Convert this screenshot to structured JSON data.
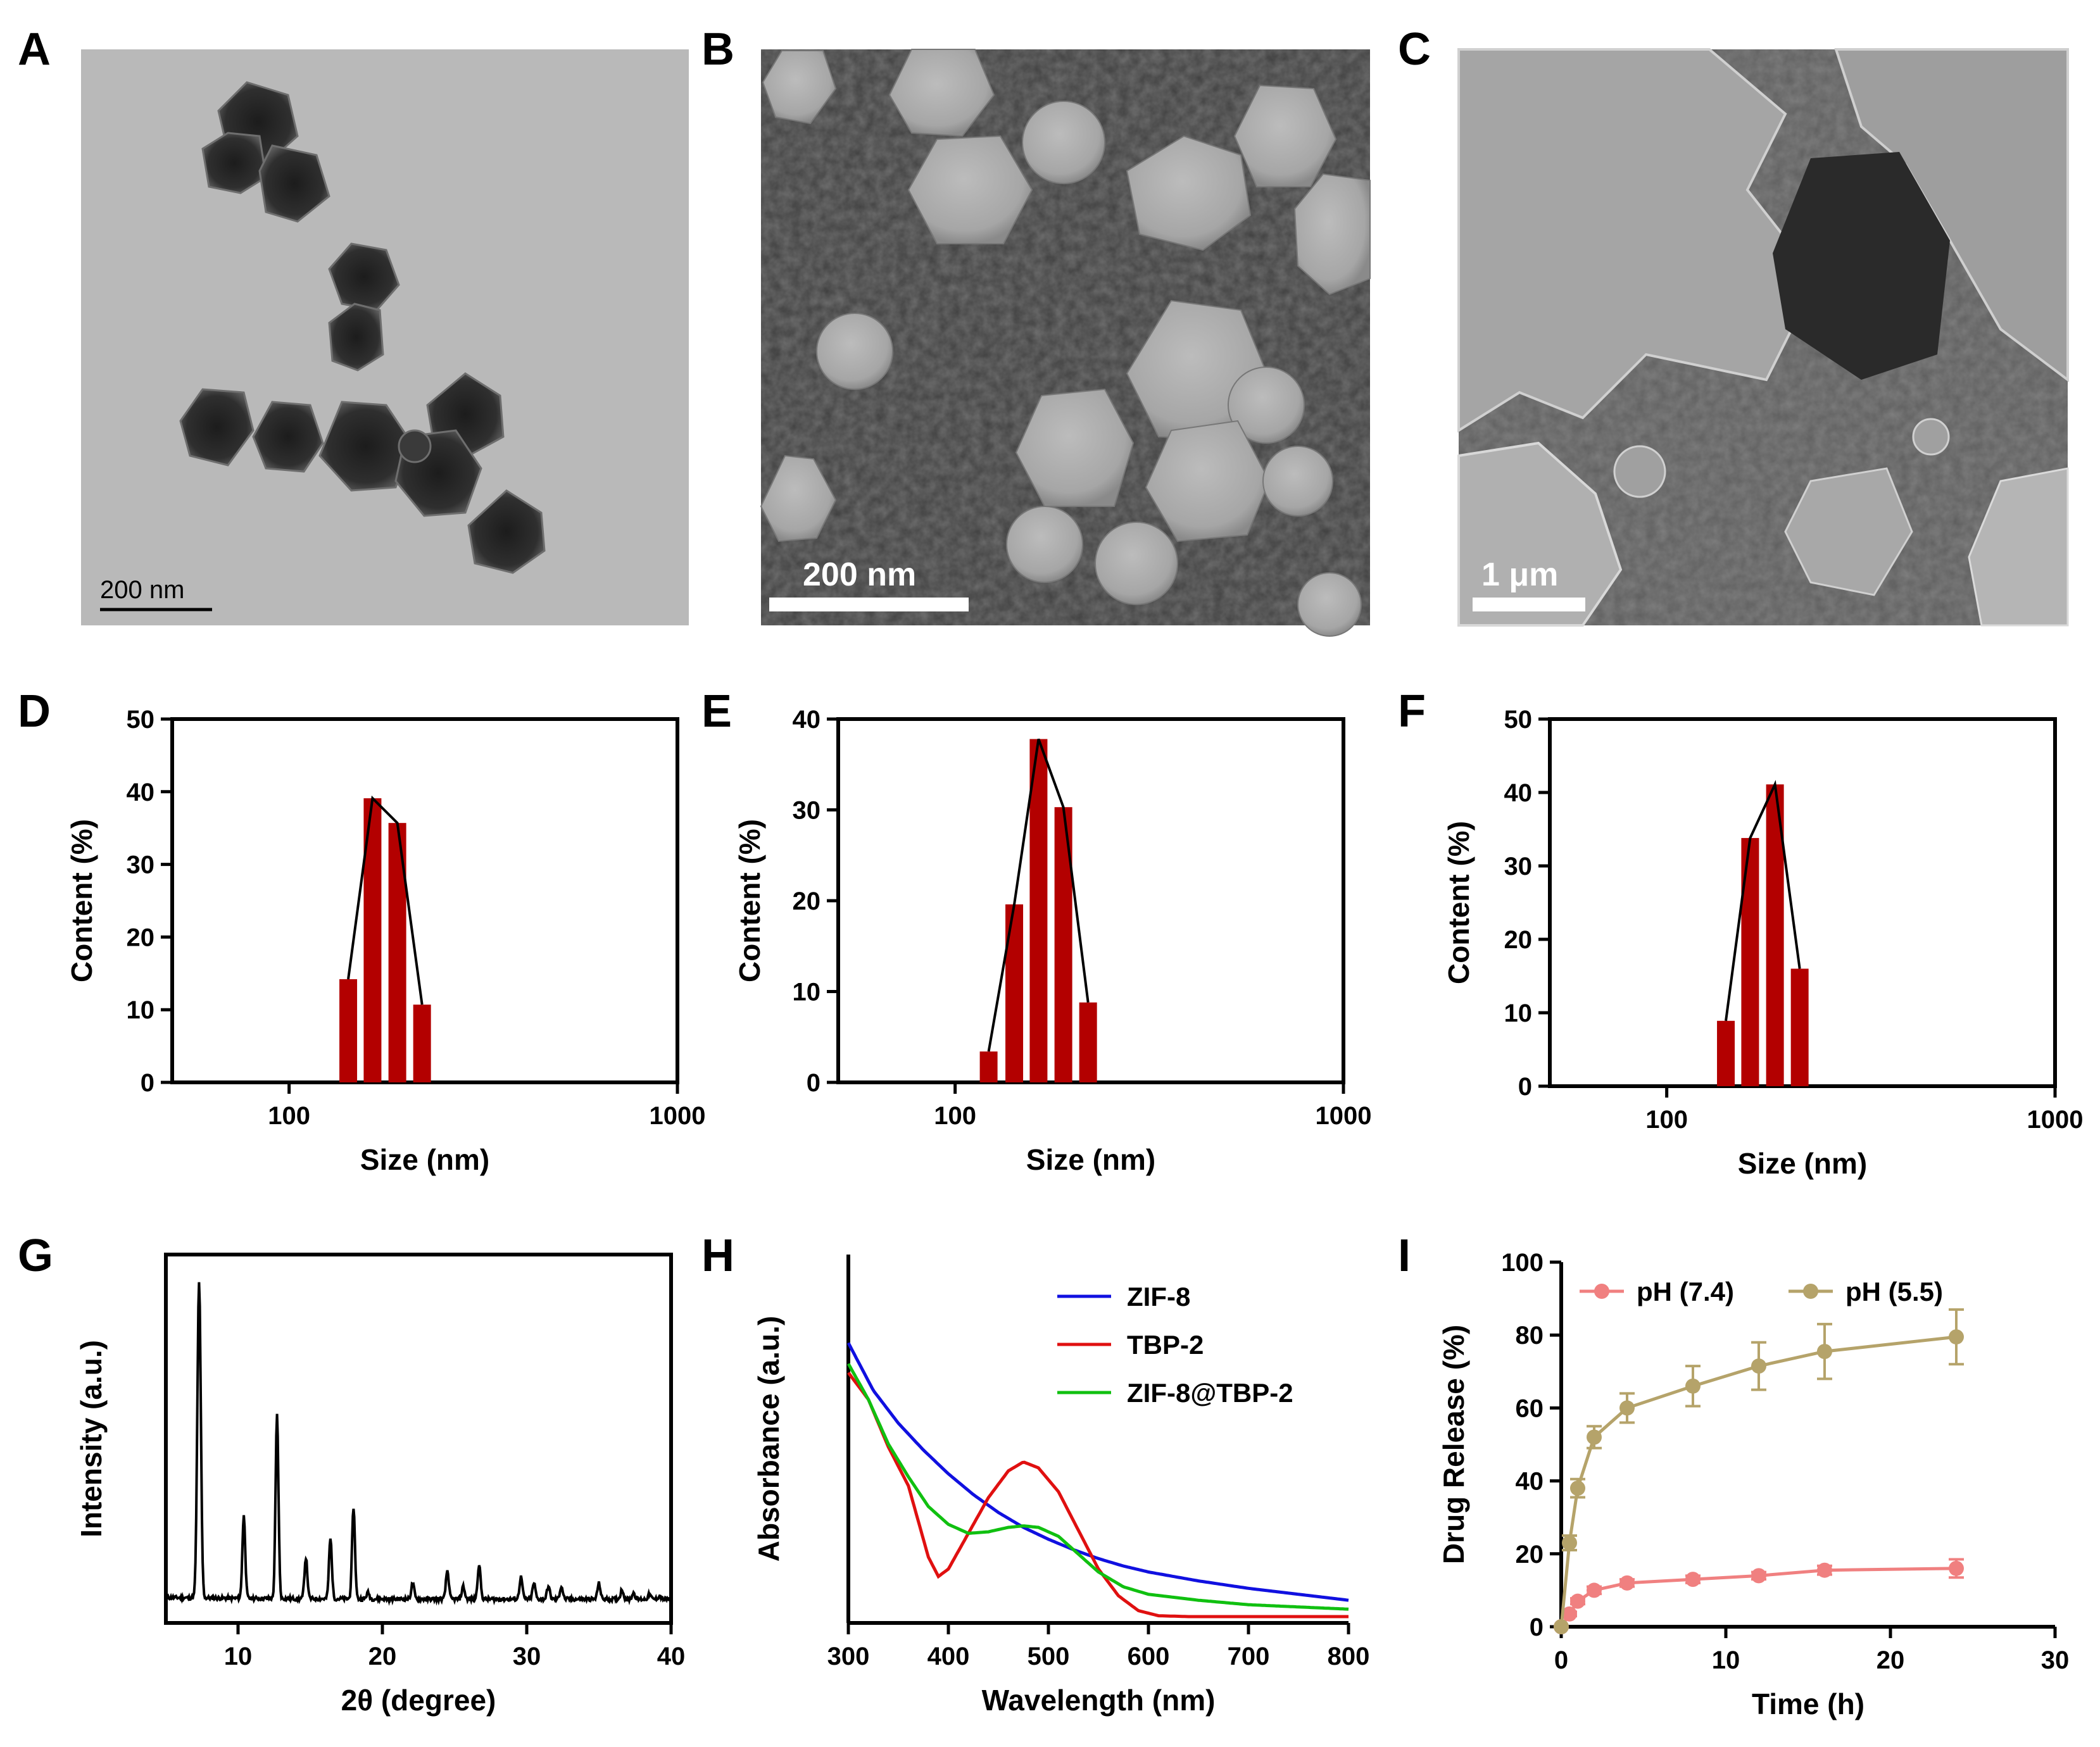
{
  "panels": {
    "A": {
      "label": "A",
      "scalebar": "200 nm"
    },
    "B": {
      "label": "B",
      "scalebar": "200 nm"
    },
    "C": {
      "label": "C",
      "scalebar": "1 μm"
    },
    "D": {
      "label": "D"
    },
    "E": {
      "label": "E"
    },
    "F": {
      "label": "F"
    },
    "G": {
      "label": "G"
    },
    "H": {
      "label": "H"
    },
    "I": {
      "label": "I"
    }
  },
  "colors": {
    "bar": "#b30000",
    "zif8": "#1010e0",
    "tbp2": "#e01010",
    "zif8tbp2": "#10c010",
    "ph74": "#f08080",
    "ph55": "#b5a36a"
  },
  "chart_data": [
    {
      "panel": "D",
      "type": "bar",
      "x_scale": "log",
      "xlim": [
        50,
        1000
      ],
      "ylim": [
        0,
        50
      ],
      "xticks": [
        "100",
        "1000"
      ],
      "yticks": [
        "0",
        "10",
        "20",
        "30",
        "40",
        "50"
      ],
      "xlabel": "Size (nm)",
      "ylabel": "Content (%)",
      "x": [
        142,
        164,
        190,
        220
      ],
      "values": [
        14.2,
        39.1,
        35.7,
        10.7
      ]
    },
    {
      "panel": "E",
      "type": "bar",
      "x_scale": "log",
      "xlim": [
        50,
        1000
      ],
      "ylim": [
        0,
        40
      ],
      "xticks": [
        "100",
        "1000"
      ],
      "yticks": [
        "0",
        "10",
        "20",
        "30",
        "40"
      ],
      "xlabel": "Size (nm)",
      "ylabel": "Content (%)",
      "x": [
        122,
        142,
        164,
        190,
        220
      ],
      "values": [
        3.4,
        19.6,
        37.8,
        30.3,
        8.8
      ]
    },
    {
      "panel": "F",
      "type": "bar",
      "x_scale": "log",
      "xlim": [
        50,
        1000
      ],
      "ylim": [
        0,
        50
      ],
      "xticks": [
        "100",
        "1000"
      ],
      "yticks": [
        "0",
        "10",
        "20",
        "30",
        "40",
        "50"
      ],
      "xlabel": "Size (nm)",
      "ylabel": "Content (%)",
      "x": [
        142,
        164,
        190,
        220
      ],
      "values": [
        8.9,
        33.8,
        41.1,
        16.0
      ]
    },
    {
      "panel": "G",
      "type": "line",
      "xlim": [
        5,
        40
      ],
      "xticks": [
        "10",
        "20",
        "30",
        "40"
      ],
      "xlabel": "2θ (degree)",
      "ylabel": "Intensity (a.u.)",
      "baseline": 0.035,
      "peaks": [
        [
          7.3,
          1.0,
          0.12
        ],
        [
          10.4,
          0.26,
          0.1
        ],
        [
          12.7,
          0.58,
          0.1
        ],
        [
          14.7,
          0.13,
          0.1
        ],
        [
          16.4,
          0.19,
          0.1
        ],
        [
          18.0,
          0.29,
          0.1
        ],
        [
          19.0,
          0.02,
          0.1
        ],
        [
          22.1,
          0.05,
          0.1
        ],
        [
          24.5,
          0.09,
          0.1
        ],
        [
          25.6,
          0.04,
          0.1
        ],
        [
          26.7,
          0.11,
          0.1
        ],
        [
          29.6,
          0.07,
          0.1
        ],
        [
          30.5,
          0.05,
          0.1
        ],
        [
          31.5,
          0.04,
          0.1
        ],
        [
          32.4,
          0.04,
          0.1
        ],
        [
          35.0,
          0.05,
          0.1
        ],
        [
          36.6,
          0.03,
          0.1
        ],
        [
          37.4,
          0.02,
          0.1
        ],
        [
          38.5,
          0.015,
          0.1
        ],
        [
          39.2,
          0.01,
          0.1
        ]
      ]
    },
    {
      "panel": "H",
      "type": "line",
      "xlim": [
        300,
        800
      ],
      "xticks": [
        "300",
        "400",
        "500",
        "600",
        "700",
        "800"
      ],
      "xlabel": "Wavelength (nm)",
      "ylabel": "Absorbance (a.u.)",
      "legend_position": "top-right",
      "series": [
        {
          "name": "ZIF-8",
          "color": "#1010e0",
          "x": [
            300,
            325,
            350,
            375,
            400,
            425,
            450,
            475,
            500,
            525,
            550,
            575,
            600,
            650,
            700,
            750,
            800
          ],
          "y": [
            0.92,
            0.76,
            0.65,
            0.56,
            0.48,
            0.41,
            0.35,
            0.3,
            0.26,
            0.225,
            0.195,
            0.17,
            0.15,
            0.12,
            0.095,
            0.075,
            0.055
          ]
        },
        {
          "name": "TBP-2",
          "color": "#e01010",
          "x": [
            300,
            320,
            340,
            360,
            380,
            390,
            400,
            420,
            440,
            460,
            475,
            490,
            510,
            530,
            550,
            570,
            590,
            610,
            640,
            700,
            800
          ],
          "y": [
            0.82,
            0.73,
            0.57,
            0.44,
            0.2,
            0.135,
            0.16,
            0.28,
            0.4,
            0.49,
            0.52,
            0.5,
            0.42,
            0.29,
            0.16,
            0.07,
            0.02,
            0.003,
            0.0,
            0.0,
            0.0
          ]
        },
        {
          "name": "ZIF-8@TBP-2",
          "color": "#10c010",
          "x": [
            300,
            320,
            340,
            360,
            380,
            400,
            420,
            440,
            460,
            475,
            490,
            510,
            530,
            550,
            575,
            600,
            650,
            700,
            800
          ],
          "y": [
            0.85,
            0.73,
            0.58,
            0.47,
            0.37,
            0.31,
            0.28,
            0.285,
            0.3,
            0.305,
            0.3,
            0.27,
            0.21,
            0.15,
            0.1,
            0.075,
            0.055,
            0.04,
            0.025
          ]
        }
      ]
    },
    {
      "panel": "I",
      "type": "line",
      "xlim": [
        0,
        30
      ],
      "ylim": [
        0,
        100
      ],
      "xticks": [
        "0",
        "10",
        "20",
        "30"
      ],
      "yticks": [
        "0",
        "20",
        "40",
        "60",
        "80",
        "100"
      ],
      "xlabel": "Time (h)",
      "ylabel": "Drug Release (%)",
      "legend_position": "top-left",
      "series": [
        {
          "name": "pH (7.4)",
          "color": "#f08080",
          "x": [
            0,
            0.5,
            1,
            2,
            4,
            8,
            12,
            16,
            24
          ],
          "y": [
            0,
            3.5,
            7,
            10,
            12,
            13,
            14,
            15.5,
            16
          ],
          "err": [
            0,
            0.6,
            0.8,
            1,
            1,
            1,
            1,
            1.2,
            2.5
          ]
        },
        {
          "name": "pH (5.5)",
          "color": "#b5a36a",
          "x": [
            0,
            0.5,
            1,
            2,
            4,
            8,
            12,
            16,
            24
          ],
          "y": [
            0,
            23,
            38,
            52,
            60,
            66,
            71.5,
            75.5,
            79.5
          ],
          "err": [
            0,
            2,
            2.5,
            3,
            4,
            5.5,
            6.5,
            7.5,
            7.5
          ]
        }
      ]
    }
  ]
}
